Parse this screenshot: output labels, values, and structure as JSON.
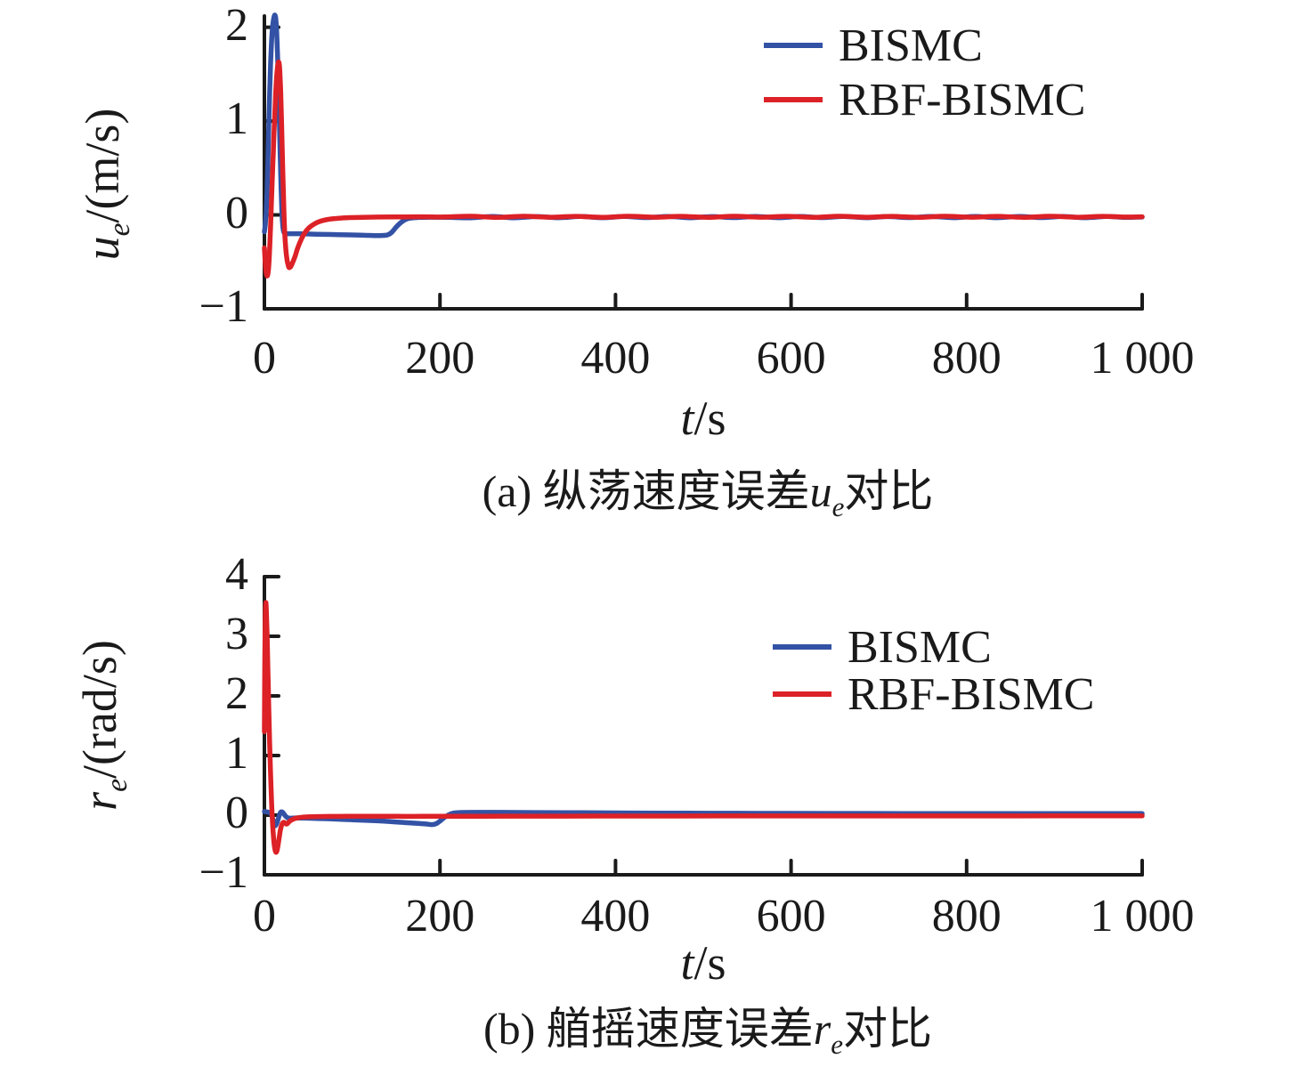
{
  "chart_data": [
    {
      "type": "line",
      "caption": {
        "prefix": "(a) 纵荡速度误差",
        "var": "u",
        "sub": "e",
        "suffix": "对比"
      },
      "x_axis": {
        "label_var": "t",
        "label_unit": "/s",
        "lim": [
          0,
          1000
        ],
        "tick_values": [
          0,
          200,
          400,
          600,
          800,
          1000
        ],
        "tick_labels": [
          "0",
          "200",
          "400",
          "600",
          "800",
          "1 000"
        ]
      },
      "y_axis": {
        "label_var": "u",
        "label_sub": "e",
        "label_unit": "/(m/s)",
        "lim": [
          -1,
          2.12
        ],
        "tick_values": [
          2,
          1,
          0,
          -1
        ],
        "tick_labels": [
          "2",
          "1",
          "0",
          "−1"
        ]
      },
      "grid": false,
      "legend_position": "upper-right-inside",
      "series": [
        {
          "name": "BISMC",
          "color": "#3352a5",
          "points": [
            [
              0,
              -0.18
            ],
            [
              1,
              -0.1
            ],
            [
              2,
              0.03
            ],
            [
              3,
              0.25
            ],
            [
              4,
              0.55
            ],
            [
              5,
              0.95
            ],
            [
              6,
              1.3
            ],
            [
              7,
              1.6
            ],
            [
              8,
              1.82
            ],
            [
              9,
              1.97
            ],
            [
              10,
              2.06
            ],
            [
              11,
              2.11
            ],
            [
              12,
              2.13
            ],
            [
              13,
              2.09
            ],
            [
              14,
              1.95
            ],
            [
              15,
              1.7
            ],
            [
              16,
              1.38
            ],
            [
              17,
              1.02
            ],
            [
              18,
              0.65
            ],
            [
              19,
              0.3
            ],
            [
              20,
              0.02
            ],
            [
              21,
              -0.12
            ],
            [
              22,
              -0.18
            ],
            [
              24,
              -0.2
            ],
            [
              28,
              -0.2
            ],
            [
              40,
              -0.2
            ],
            [
              60,
              -0.205
            ],
            [
              85,
              -0.21
            ],
            [
              110,
              -0.215
            ],
            [
              130,
              -0.22
            ],
            [
              140,
              -0.214
            ],
            [
              145,
              -0.185
            ],
            [
              150,
              -0.13
            ],
            [
              155,
              -0.085
            ],
            [
              160,
              -0.052
            ],
            [
              166,
              -0.034
            ],
            [
              175,
              -0.027
            ],
            [
              190,
              -0.024
            ],
            [
              210,
              -0.026
            ],
            [
              235,
              -0.03
            ],
            [
              260,
              -0.016
            ],
            [
              285,
              -0.03
            ],
            [
              310,
              -0.018
            ],
            [
              335,
              -0.029
            ],
            [
              360,
              -0.017
            ],
            [
              385,
              -0.029
            ],
            [
              410,
              -0.017
            ],
            [
              435,
              -0.028
            ],
            [
              460,
              -0.016
            ],
            [
              485,
              -0.03
            ],
            [
              510,
              -0.018
            ],
            [
              535,
              -0.028
            ],
            [
              560,
              -0.016
            ],
            [
              585,
              -0.029
            ],
            [
              610,
              -0.017
            ],
            [
              635,
              -0.028
            ],
            [
              660,
              -0.016
            ],
            [
              685,
              -0.029
            ],
            [
              710,
              -0.018
            ],
            [
              735,
              -0.028
            ],
            [
              760,
              -0.016
            ],
            [
              785,
              -0.029
            ],
            [
              810,
              -0.017
            ],
            [
              835,
              -0.029
            ],
            [
              860,
              -0.016
            ],
            [
              885,
              -0.028
            ],
            [
              910,
              -0.017
            ],
            [
              935,
              -0.029
            ],
            [
              960,
              -0.016
            ],
            [
              980,
              -0.026
            ],
            [
              1000,
              -0.022
            ]
          ]
        },
        {
          "name": "RBF-BISMC",
          "color": "#dc2127",
          "points": [
            [
              0,
              -0.35
            ],
            [
              1,
              -0.52
            ],
            [
              2,
              -0.62
            ],
            [
              3,
              -0.65
            ],
            [
              4,
              -0.63
            ],
            [
              5,
              -0.54
            ],
            [
              6,
              -0.36
            ],
            [
              7,
              -0.13
            ],
            [
              8,
              0.14
            ],
            [
              9,
              0.4
            ],
            [
              10,
              0.64
            ],
            [
              11,
              0.88
            ],
            [
              12,
              1.1
            ],
            [
              13,
              1.32
            ],
            [
              14,
              1.48
            ],
            [
              15,
              1.58
            ],
            [
              16,
              1.63
            ],
            [
              17,
              1.6
            ],
            [
              18,
              1.45
            ],
            [
              19,
              1.18
            ],
            [
              20,
              0.82
            ],
            [
              21,
              0.45
            ],
            [
              22,
              0.12
            ],
            [
              23,
              -0.16
            ],
            [
              24,
              -0.32
            ],
            [
              25,
              -0.42
            ],
            [
              26,
              -0.49
            ],
            [
              27,
              -0.53
            ],
            [
              28,
              -0.56
            ],
            [
              30,
              -0.55
            ],
            [
              32,
              -0.51
            ],
            [
              35,
              -0.44
            ],
            [
              38,
              -0.35
            ],
            [
              42,
              -0.26
            ],
            [
              46,
              -0.19
            ],
            [
              51,
              -0.135
            ],
            [
              57,
              -0.095
            ],
            [
              64,
              -0.066
            ],
            [
              72,
              -0.048
            ],
            [
              82,
              -0.037
            ],
            [
              95,
              -0.029
            ],
            [
              110,
              -0.025
            ],
            [
              130,
              -0.022
            ],
            [
              155,
              -0.02
            ],
            [
              180,
              -0.019
            ],
            [
              205,
              -0.021
            ],
            [
              235,
              -0.014
            ],
            [
              265,
              -0.026
            ],
            [
              295,
              -0.014
            ],
            [
              325,
              -0.024
            ],
            [
              355,
              -0.015
            ],
            [
              385,
              -0.025
            ],
            [
              415,
              -0.014
            ],
            [
              445,
              -0.024
            ],
            [
              475,
              -0.015
            ],
            [
              505,
              -0.025
            ],
            [
              535,
              -0.014
            ],
            [
              565,
              -0.024
            ],
            [
              595,
              -0.015
            ],
            [
              625,
              -0.025
            ],
            [
              655,
              -0.014
            ],
            [
              685,
              -0.024
            ],
            [
              715,
              -0.015
            ],
            [
              745,
              -0.025
            ],
            [
              775,
              -0.014
            ],
            [
              805,
              -0.024
            ],
            [
              835,
              -0.015
            ],
            [
              865,
              -0.025
            ],
            [
              895,
              -0.014
            ],
            [
              925,
              -0.024
            ],
            [
              955,
              -0.015
            ],
            [
              980,
              -0.022
            ],
            [
              1000,
              -0.019
            ]
          ]
        }
      ]
    },
    {
      "type": "line",
      "caption": {
        "prefix": "(b) 艏摇速度误差",
        "var": "r",
        "sub": "e",
        "suffix": "对比"
      },
      "x_axis": {
        "label_var": "t",
        "label_unit": "/s",
        "lim": [
          0,
          1000
        ],
        "tick_values": [
          0,
          200,
          400,
          600,
          800,
          1000
        ],
        "tick_labels": [
          "0",
          "200",
          "400",
          "600",
          "800",
          "1 000"
        ]
      },
      "y_axis": {
        "label_var": "r",
        "label_sub": "e",
        "label_unit": "/(rad/s)",
        "lim": [
          -1,
          4
        ],
        "tick_values": [
          4,
          3,
          2,
          1,
          0,
          -1
        ],
        "tick_labels": [
          "4",
          "3",
          "2",
          "1",
          "0",
          "−1"
        ]
      },
      "grid": false,
      "legend_position": "upper-right-inside",
      "series": [
        {
          "name": "BISMC",
          "color": "#3352a5",
          "points": [
            [
              0,
              0.06
            ],
            [
              3,
              0.055
            ],
            [
              6,
              0.04
            ],
            [
              8,
              0.01
            ],
            [
              9,
              -0.04
            ],
            [
              10,
              -0.09
            ],
            [
              11,
              -0.14
            ],
            [
              12,
              -0.175
            ],
            [
              13,
              -0.17
            ],
            [
              14,
              -0.14
            ],
            [
              15,
              -0.1
            ],
            [
              16,
              -0.05
            ],
            [
              17,
              0.0
            ],
            [
              18,
              0.035
            ],
            [
              19,
              0.055
            ],
            [
              20,
              0.055
            ],
            [
              21,
              0.045
            ],
            [
              22,
              0.025
            ],
            [
              24,
              -0.015
            ],
            [
              26,
              -0.04
            ],
            [
              28,
              -0.05
            ],
            [
              31,
              -0.05
            ],
            [
              36,
              -0.047
            ],
            [
              45,
              -0.048
            ],
            [
              60,
              -0.055
            ],
            [
              80,
              -0.065
            ],
            [
              100,
              -0.078
            ],
            [
              120,
              -0.09
            ],
            [
              140,
              -0.105
            ],
            [
              160,
              -0.125
            ],
            [
              175,
              -0.138
            ],
            [
              185,
              -0.15
            ],
            [
              191,
              -0.158
            ],
            [
              196,
              -0.14
            ],
            [
              200,
              -0.1
            ],
            [
              204,
              -0.05
            ],
            [
              208,
              -0.01
            ],
            [
              212,
              0.02
            ],
            [
              217,
              0.038
            ],
            [
              225,
              0.045
            ],
            [
              240,
              0.047
            ],
            [
              270,
              0.046
            ],
            [
              310,
              0.043
            ],
            [
              360,
              0.04
            ],
            [
              420,
              0.036
            ],
            [
              480,
              0.033
            ],
            [
              540,
              0.031
            ],
            [
              600,
              0.03
            ],
            [
              670,
              0.028
            ],
            [
              740,
              0.027
            ],
            [
              820,
              0.026
            ],
            [
              900,
              0.025
            ],
            [
              1000,
              0.025
            ]
          ]
        },
        {
          "name": "RBF-BISMC",
          "color": "#dc2127",
          "points": [
            [
              0,
              1.4
            ],
            [
              0.5,
              2.7
            ],
            [
              1,
              3.35
            ],
            [
              1.5,
              3.55
            ],
            [
              2,
              3.5
            ],
            [
              3,
              3.05
            ],
            [
              4,
              2.45
            ],
            [
              5,
              1.8
            ],
            [
              6,
              1.2
            ],
            [
              7,
              0.7
            ],
            [
              8,
              0.28
            ],
            [
              9,
              -0.05
            ],
            [
              10,
              -0.3
            ],
            [
              11,
              -0.47
            ],
            [
              12,
              -0.57
            ],
            [
              13,
              -0.62
            ],
            [
              14,
              -0.61
            ],
            [
              15,
              -0.55
            ],
            [
              16,
              -0.46
            ],
            [
              17,
              -0.36
            ],
            [
              18,
              -0.27
            ],
            [
              19,
              -0.2
            ],
            [
              20,
              -0.155
            ],
            [
              21,
              -0.13
            ],
            [
              22,
              -0.12
            ],
            [
              23,
              -0.125
            ],
            [
              24,
              -0.14
            ],
            [
              25,
              -0.15
            ],
            [
              26,
              -0.145
            ],
            [
              27,
              -0.13
            ],
            [
              29,
              -0.1
            ],
            [
              31,
              -0.08
            ],
            [
              34,
              -0.06
            ],
            [
              38,
              -0.045
            ],
            [
              43,
              -0.035
            ],
            [
              50,
              -0.028
            ],
            [
              60,
              -0.024
            ],
            [
              75,
              -0.021
            ],
            [
              95,
              -0.02
            ],
            [
              120,
              -0.02
            ],
            [
              150,
              -0.02
            ],
            [
              180,
              -0.02
            ],
            [
              210,
              -0.019
            ],
            [
              245,
              -0.018
            ],
            [
              285,
              -0.017
            ],
            [
              330,
              -0.016
            ],
            [
              380,
              -0.015
            ],
            [
              440,
              -0.015
            ],
            [
              520,
              -0.014
            ],
            [
              620,
              -0.013
            ],
            [
              750,
              -0.013
            ],
            [
              900,
              -0.012
            ],
            [
              1000,
              -0.012
            ]
          ]
        }
      ]
    }
  ],
  "style": {
    "axis_color": "#1a1a1a",
    "bismc_color": "#3352a5",
    "rbf_bismc_color": "#dc2127"
  }
}
